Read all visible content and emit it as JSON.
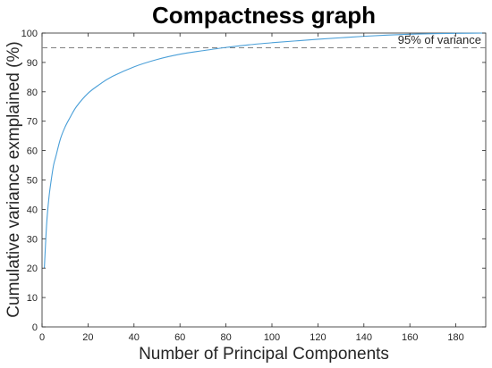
{
  "chart_data": {
    "type": "line",
    "title": "Compactness graph",
    "xlabel": "Number of Principal Components",
    "ylabel": "Cumulative variance exmplained (%)",
    "xlim": [
      0,
      193
    ],
    "ylim": [
      0,
      100
    ],
    "xticks": [
      0,
      20,
      40,
      60,
      80,
      100,
      120,
      140,
      160,
      180
    ],
    "yticks": [
      0,
      10,
      20,
      30,
      40,
      50,
      60,
      70,
      80,
      90,
      100
    ],
    "grid": false,
    "series": [
      {
        "color": "#4a9fd8",
        "x": [
          1,
          2,
          3,
          4,
          5,
          6,
          8,
          10,
          12,
          15,
          20,
          25,
          30,
          40,
          50,
          60,
          70,
          80,
          90,
          100,
          110,
          120,
          130,
          140,
          150,
          160,
          170,
          180,
          193
        ],
        "y": [
          20,
          35,
          44,
          50,
          55,
          58,
          64,
          68,
          71,
          75,
          79.5,
          82.5,
          85,
          88.5,
          91,
          92.8,
          94,
          95.1,
          96,
          96.7,
          97.3,
          97.9,
          98.4,
          98.9,
          99.3,
          99.6,
          99.8,
          99.9,
          100
        ]
      }
    ],
    "reference_line": {
      "y": 95,
      "style": "dashed",
      "color": "#808080",
      "label": "95% of variance"
    }
  }
}
